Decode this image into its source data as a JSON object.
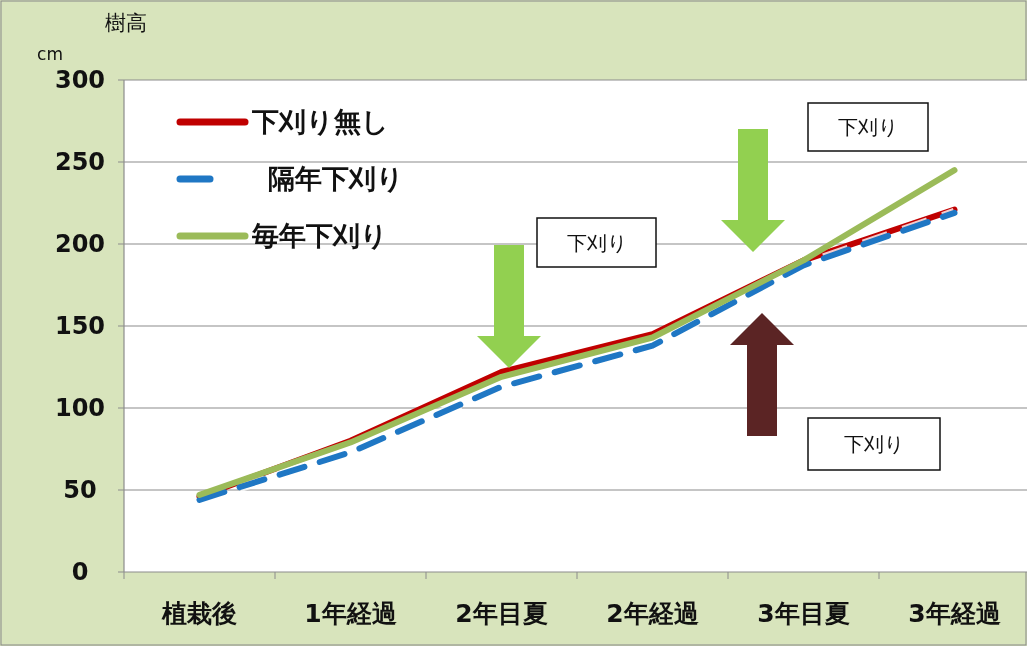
{
  "chart_data": {
    "type": "line",
    "ylabel": "樹高",
    "categories": [
      "植栽後",
      "1年経過",
      "2年目夏",
      "2年経過",
      "3年目夏",
      "3年経過"
    ],
    "series": [
      {
        "name": "下刈り無し",
        "color": "#c00000",
        "line_style": "solid",
        "values": [
          46,
          80,
          122,
          145,
          190,
          221
        ]
      },
      {
        "name": "隔年下刈り",
        "color": "#1f77c4",
        "line_style": "dashed",
        "values": [
          44,
          73,
          113,
          138,
          187,
          219
        ]
      },
      {
        "name": "毎年下刈り",
        "color": "#9bbb59",
        "line_style": "solid",
        "values": [
          47,
          79,
          119,
          143,
          190,
          245
        ]
      }
    ],
    "ylim": [
      0,
      300
    ],
    "yticks": [
      0,
      50,
      100,
      150,
      200,
      250,
      300
    ],
    "grid": "y",
    "legend": "top left",
    "annotations": [
      "cm",
      "下刈り",
      "下刈り",
      "下刈り"
    ]
  }
}
